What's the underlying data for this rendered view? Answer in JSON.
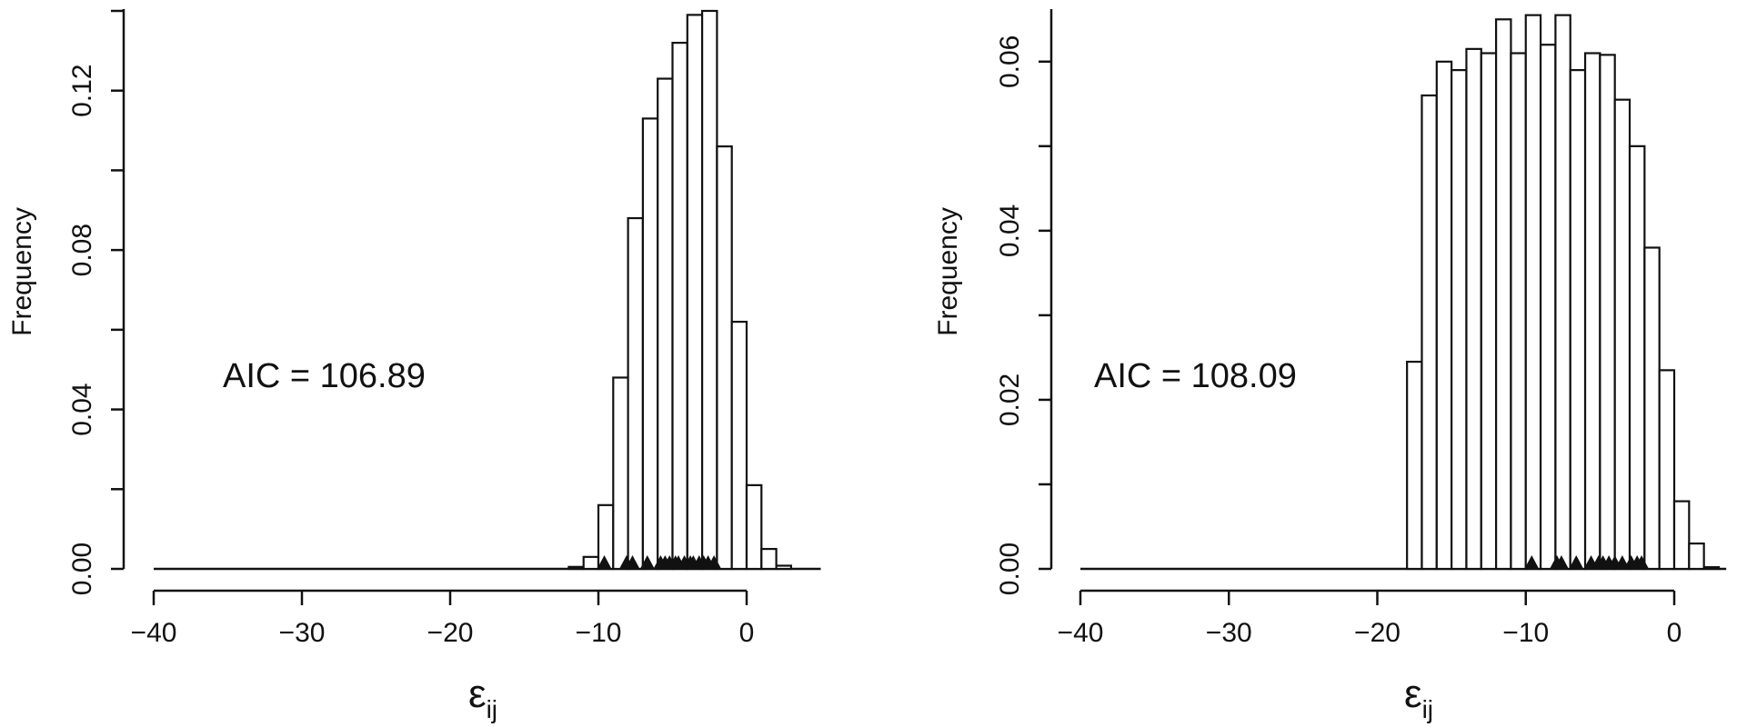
{
  "chart_data": [
    {
      "type": "bar",
      "subtype": "histogram",
      "ylabel": "Frequency",
      "xlabel_main": "ε",
      "xlabel_sub": "ij",
      "annotation": "AIC = 106.89",
      "xlim": [
        -40,
        5
      ],
      "ylim": [
        0,
        0.14
      ],
      "xticks": [
        -40,
        -30,
        -20,
        -10,
        0
      ],
      "xtick_labels": [
        "−40",
        "−30",
        "−20",
        "−10",
        "0"
      ],
      "yticks": [
        0.0,
        0.04,
        0.08,
        0.12
      ],
      "ytick_labels": [
        "0.00",
        "0.04",
        "0.08",
        "0.12"
      ],
      "bin_width": 1,
      "bins_start": [
        -12,
        -11,
        -10,
        -9,
        -8,
        -7,
        -6,
        -5,
        -4,
        -3,
        -2,
        -1,
        0,
        1,
        2
      ],
      "values": [
        0.0005,
        0.003,
        0.016,
        0.048,
        0.088,
        0.113,
        0.123,
        0.132,
        0.139,
        0.14,
        0.106,
        0.062,
        0.021,
        0.005,
        0.0008
      ],
      "baseline_range": [
        -40,
        5
      ],
      "markers": [
        -9.6,
        -8.1,
        -7.7,
        -6.7,
        -5.8,
        -5.5,
        -5.2,
        -4.8,
        -4.6,
        -4.2,
        -3.8,
        -3.6,
        -3.2,
        -2.9,
        -2.6,
        -2.2
      ]
    },
    {
      "type": "bar",
      "subtype": "histogram",
      "ylabel": "Frequency",
      "xlabel_main": "ε",
      "xlabel_sub": "ij",
      "annotation": "AIC = 108.09",
      "xlim": [
        -40,
        5
      ],
      "ylim": [
        0,
        0.066
      ],
      "xticks": [
        -40,
        -30,
        -20,
        -10,
        0
      ],
      "xtick_labels": [
        "−40",
        "−30",
        "−20",
        "−10",
        "0"
      ],
      "yticks": [
        0.0,
        0.02,
        0.04,
        0.06
      ],
      "ytick_labels": [
        "0.00",
        "0.02",
        "0.04",
        "0.06"
      ],
      "bin_width": 1,
      "bins_start": [
        -18,
        -17,
        -16,
        -15,
        -14,
        -13,
        -12,
        -11,
        -10,
        -9,
        -8,
        -7,
        -6,
        -5,
        -4,
        -3,
        -2,
        -1,
        0,
        1,
        2
      ],
      "values": [
        0.0245,
        0.056,
        0.06,
        0.059,
        0.0615,
        0.061,
        0.065,
        0.061,
        0.0655,
        0.062,
        0.0655,
        0.059,
        0.061,
        0.0608,
        0.0555,
        0.05,
        0.038,
        0.0235,
        0.008,
        0.003,
        0.0002
      ],
      "baseline_range": [
        -40,
        3.5
      ],
      "markers": [
        -9.6,
        -7.9,
        -7.6,
        -6.6,
        -5.6,
        -5.1,
        -4.8,
        -4.4,
        -4.0,
        -3.5,
        -2.9,
        -2.5,
        -2.2
      ]
    }
  ]
}
